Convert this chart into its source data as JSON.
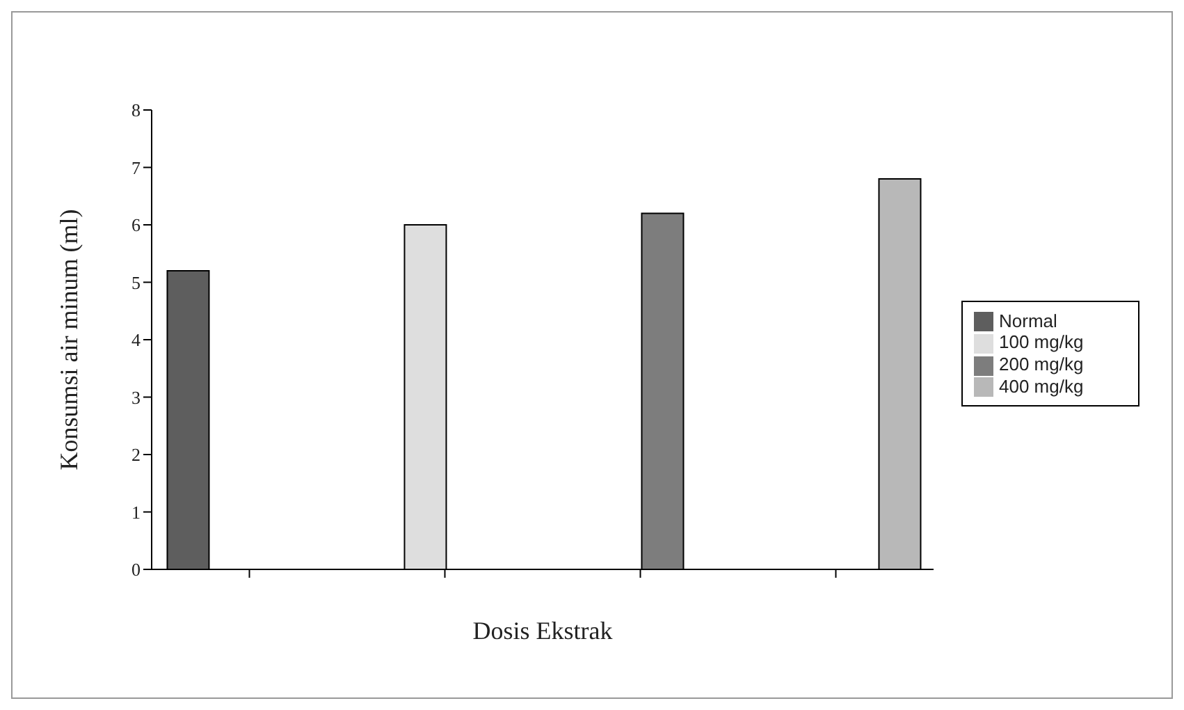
{
  "chart_data": {
    "type": "bar",
    "xlabel": "Dosis Ekstrak",
    "ylabel": "Konsumsi air minum (ml)",
    "categories": [
      null,
      null,
      null,
      null
    ],
    "series": [
      {
        "name": "Normal",
        "color": "#5e5e5e",
        "values": [
          5.2,
          null,
          null,
          null
        ]
      },
      {
        "name": "100 mg/kg",
        "color": "#dedede",
        "values": [
          null,
          6.0,
          null,
          null
        ]
      },
      {
        "name": "200 mg/kg",
        "color": "#7d7d7d",
        "values": [
          null,
          null,
          6.2,
          null
        ]
      },
      {
        "name": "400 mg/kg",
        "color": "#b8b8b8",
        "values": [
          null,
          null,
          null,
          6.8
        ]
      }
    ],
    "ylim": [
      0,
      8
    ],
    "yticks": [
      0,
      1,
      2,
      3,
      4,
      5,
      6,
      7,
      8
    ],
    "grid": false,
    "legend": "right"
  }
}
